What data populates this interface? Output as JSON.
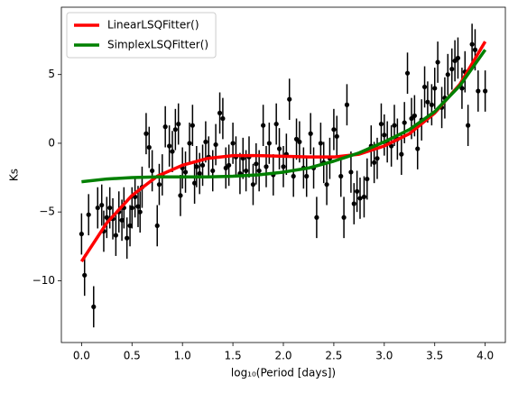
{
  "chart_data": {
    "type": "scatter",
    "xlabel": "log₁₀(Period [days])",
    "ylabel": "Ks",
    "xlim": [
      -0.2,
      4.2
    ],
    "ylim": [
      -14.5,
      9.9
    ],
    "xticks": [
      {
        "value": 0,
        "label": "0.0"
      },
      {
        "value": 0.5,
        "label": "0.5"
      },
      {
        "value": 1,
        "label": "1.0"
      },
      {
        "value": 1.5,
        "label": "1.5"
      },
      {
        "value": 2,
        "label": "2.0"
      },
      {
        "value": 2.5,
        "label": "2.5"
      },
      {
        "value": 3,
        "label": "3.0"
      },
      {
        "value": 3.5,
        "label": "3.5"
      },
      {
        "value": 4,
        "label": "4.0"
      }
    ],
    "yticks": [
      {
        "value": -10,
        "label": "−10"
      },
      {
        "value": -5,
        "label": "−5"
      },
      {
        "value": 0,
        "label": "0"
      },
      {
        "value": 5,
        "label": "5"
      }
    ],
    "legend": "upper left",
    "series": [
      {
        "type": "errorbar",
        "color": "#000000",
        "yerr": 1.5,
        "x": [
          0.0,
          0.03,
          0.07,
          0.12,
          0.16,
          0.2,
          0.22,
          0.25,
          0.28,
          0.31,
          0.34,
          0.37,
          0.4,
          0.42,
          0.45,
          0.48,
          0.5,
          0.53,
          0.56,
          0.58,
          0.6,
          0.64,
          0.67,
          0.7,
          0.75,
          0.77,
          0.8,
          0.83,
          0.87,
          0.9,
          0.93,
          0.96,
          0.98,
          1.0,
          1.03,
          1.07,
          1.1,
          1.12,
          1.14,
          1.17,
          1.2,
          1.23,
          1.26,
          1.3,
          1.33,
          1.37,
          1.4,
          1.43,
          1.46,
          1.5,
          1.53,
          1.57,
          1.6,
          1.63,
          1.66,
          1.7,
          1.73,
          1.76,
          1.8,
          1.83,
          1.86,
          1.9,
          1.93,
          1.96,
          2.0,
          2.03,
          2.06,
          2.1,
          2.13,
          2.16,
          2.2,
          2.23,
          2.27,
          2.3,
          2.33,
          2.37,
          2.4,
          2.43,
          2.46,
          2.5,
          2.53,
          2.57,
          2.6,
          2.63,
          2.67,
          2.7,
          2.73,
          2.76,
          2.8,
          2.83,
          2.87,
          2.9,
          2.93,
          2.97,
          3.0,
          3.03,
          3.07,
          3.1,
          3.13,
          3.17,
          3.2,
          3.23,
          3.27,
          3.3,
          3.33,
          3.37,
          3.4,
          3.43,
          3.47,
          3.5,
          3.53,
          3.57,
          3.6,
          3.63,
          3.67,
          3.7,
          3.73,
          3.77,
          3.8,
          3.83,
          3.87,
          3.9,
          3.93,
          4.0
        ],
        "values": [
          -6.6,
          -9.6,
          -5.2,
          -11.9,
          -4.7,
          -4.5,
          -6.4,
          -5.4,
          -4.7,
          -5.5,
          -6.7,
          -5.0,
          -5.6,
          -4.7,
          -6.9,
          -6.0,
          -4.7,
          -3.9,
          -4.6,
          -5.0,
          -3.2,
          0.7,
          -0.3,
          -2.0,
          -6.0,
          -3.0,
          -2.3,
          1.2,
          -0.2,
          -0.6,
          1.0,
          1.4,
          -3.8,
          -1.8,
          -2.1,
          0.0,
          1.3,
          -2.9,
          -1.7,
          -2.2,
          -1.6,
          0.1,
          -1.0,
          -2.0,
          -0.1,
          2.2,
          1.8,
          -1.8,
          -1.6,
          0.0,
          -1.0,
          -2.2,
          -1.1,
          -2.0,
          -1.0,
          -3.0,
          -1.5,
          -2.0,
          1.3,
          -1.7,
          0.0,
          -2.3,
          1.4,
          -0.4,
          -1.7,
          -0.8,
          3.2,
          -2.4,
          0.3,
          0.1,
          -1.8,
          -2.4,
          0.7,
          -1.8,
          -5.4,
          0.0,
          -1.4,
          -3.0,
          -1.1,
          1.0,
          0.5,
          -2.4,
          -5.4,
          2.8,
          -2.1,
          -4.4,
          -3.5,
          -4.0,
          -3.9,
          -2.6,
          -0.2,
          -1.4,
          -1.1,
          1.4,
          0.6,
          0.1,
          -0.2,
          1.3,
          0.3,
          -0.8,
          1.5,
          5.1,
          1.8,
          2.0,
          -0.4,
          1.7,
          4.1,
          3.0,
          2.8,
          4.0,
          5.9,
          2.6,
          3.3,
          5.0,
          5.4,
          6.0,
          6.2,
          4.0,
          5.2,
          1.3,
          7.2,
          6.8,
          3.8,
          3.8
        ]
      },
      {
        "type": "line",
        "name": "LinearLSQFitter()",
        "color": "#ff0000",
        "x": [
          0,
          0.25,
          0.5,
          0.75,
          1,
          1.25,
          1.5,
          1.75,
          2,
          2.25,
          2.5,
          2.75,
          3,
          3.25,
          3.5,
          3.75,
          4
        ],
        "values": [
          -8.6,
          -5.8,
          -3.8,
          -2.4,
          -1.6,
          -1.1,
          -0.9,
          -0.9,
          -0.95,
          -1.0,
          -1.0,
          -0.8,
          -0.2,
          0.7,
          2.2,
          4.3,
          7.4
        ]
      },
      {
        "type": "line",
        "name": "SimplexLSQFitter()",
        "color": "#008000",
        "x": [
          0,
          0.25,
          0.5,
          0.75,
          1,
          1.25,
          1.5,
          1.75,
          2,
          2.25,
          2.5,
          2.75,
          3,
          3.25,
          3.5,
          3.75,
          4
        ],
        "values": [
          -2.8,
          -2.6,
          -2.5,
          -2.45,
          -2.45,
          -2.45,
          -2.4,
          -2.3,
          -2.1,
          -1.8,
          -1.3,
          -0.7,
          0.1,
          1.0,
          2.3,
          4.2,
          6.8
        ]
      }
    ]
  }
}
